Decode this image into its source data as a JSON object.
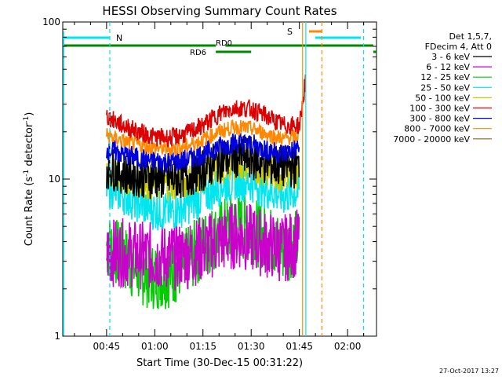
{
  "chart_data": {
    "type": "line",
    "title": "HESSI Observing Summary Count Rates",
    "xlabel": "Start Time (30-Dec-15 00:31:22)",
    "ylabel": "Count Rate (s",
    "ylabel_sup": "-1",
    "ylabel_mid": " detector",
    "ylabel_sup2": "-1",
    "ylabel_end": ")",
    "y_scale": "log",
    "ylim": [
      1,
      100
    ],
    "xlim": [
      "00:31:22",
      "02:09:00"
    ],
    "y_ticks": [
      {
        "value": 1,
        "label": "1"
      },
      {
        "value": 10,
        "label": "10"
      },
      {
        "value": 100,
        "label": "100"
      }
    ],
    "x_ticks": [
      {
        "value": "00:45",
        "label": "00:45"
      },
      {
        "value": "01:00",
        "label": "01:00"
      },
      {
        "value": "01:15",
        "label": "01:15"
      },
      {
        "value": "01:30",
        "label": "01:30"
      },
      {
        "value": "01:45",
        "label": "01:45"
      },
      {
        "value": "02:00",
        "label": "02:00"
      }
    ],
    "legend_header": [
      "Det 1,5,7,",
      "FDecim 4, Att 0"
    ],
    "legend_placement": "right",
    "series": [
      {
        "name": "3 - 6 keV",
        "color": "#000000",
        "x": [
          "00:45",
          "00:50",
          "00:55",
          "01:00",
          "01:05",
          "01:10",
          "01:15",
          "01:20",
          "01:25",
          "01:30",
          "01:35",
          "01:40",
          "01:45"
        ],
        "values": [
          12,
          11,
          10.5,
          10.2,
          10,
          10.5,
          11.5,
          13,
          14,
          13.5,
          12.5,
          12,
          12
        ]
      },
      {
        "name": "6 - 12 keV",
        "color": "#cc00cc",
        "x": [
          "00:45",
          "00:50",
          "00:55",
          "01:00",
          "01:05",
          "01:10",
          "01:15",
          "01:20",
          "01:25",
          "01:30",
          "01:35",
          "01:40",
          "01:45"
        ],
        "values": [
          3.4,
          3.4,
          3.3,
          3.2,
          3.2,
          3.3,
          3.6,
          4,
          4.4,
          4.2,
          3.8,
          3.6,
          4
        ]
      },
      {
        "name": "12 - 25 keV",
        "color": "#00cc00",
        "x": [
          "00:45",
          "00:50",
          "00:55",
          "01:00",
          "01:05",
          "01:10",
          "01:15",
          "01:20",
          "01:25",
          "01:30",
          "01:35",
          "01:40",
          "01:45"
        ],
        "values": [
          3.8,
          3.2,
          2.6,
          2.4,
          2.5,
          3,
          3.8,
          4.5,
          5,
          4.8,
          4.2,
          3.6,
          4
        ]
      },
      {
        "name": "25 - 50 keV",
        "color": "#00e5ee",
        "x": [
          "00:45",
          "00:50",
          "00:55",
          "01:00",
          "01:05",
          "01:10",
          "01:15",
          "01:20",
          "01:25",
          "01:30",
          "01:35",
          "01:40",
          "01:45"
        ],
        "values": [
          9,
          8,
          7,
          6.3,
          6.2,
          6.8,
          7.8,
          9,
          9.8,
          9.5,
          8.6,
          7.8,
          8.5
        ]
      },
      {
        "name": "50 - 100 keV",
        "color": "#cccc00",
        "x": [
          "00:45",
          "00:50",
          "00:55",
          "01:00",
          "01:05",
          "01:10",
          "01:15",
          "01:20",
          "01:25",
          "01:30",
          "01:35",
          "01:40",
          "01:45"
        ],
        "values": [
          11,
          10.3,
          9.7,
          9.3,
          9.3,
          9.7,
          10.6,
          11.8,
          12.6,
          12.2,
          11.3,
          10.6,
          11
        ]
      },
      {
        "name": "100 - 300 keV",
        "color": "#dd0000",
        "x": [
          "00:45",
          "00:50",
          "00:55",
          "01:00",
          "01:05",
          "01:10",
          "01:15",
          "01:20",
          "01:25",
          "01:30",
          "01:35",
          "01:40",
          "01:45",
          "01:46",
          "01:47"
        ],
        "values": [
          25,
          22,
          20,
          18.5,
          18.3,
          19.5,
          22,
          26,
          28.5,
          28,
          25,
          22,
          22,
          30,
          45
        ]
      },
      {
        "name": "300 - 800 keV",
        "color": "#0000dd",
        "x": [
          "00:45",
          "00:50",
          "00:55",
          "01:00",
          "01:05",
          "01:10",
          "01:15",
          "01:20",
          "01:25",
          "01:30",
          "01:35",
          "01:40",
          "01:45"
        ],
        "values": [
          15.5,
          14.5,
          13.5,
          13,
          12.8,
          13.3,
          14.5,
          16,
          17,
          16.6,
          15.3,
          14.5,
          16
        ]
      },
      {
        "name": "800 - 7000 keV",
        "color": "#ff8800",
        "x": [
          "00:45",
          "00:50",
          "00:55",
          "01:00",
          "01:05",
          "01:10",
          "01:15",
          "01:20",
          "01:25",
          "01:30",
          "01:35",
          "01:40",
          "01:45"
        ],
        "values": [
          19,
          17.5,
          16.5,
          15.8,
          15.6,
          16.2,
          17.8,
          20,
          21.5,
          21,
          19.3,
          18,
          19
        ]
      },
      {
        "name": "7000 - 20000 keV",
        "color": "#8b6914",
        "x": [],
        "values": []
      }
    ],
    "annotations": {
      "top_bars": [
        {
          "label": "N",
          "color": "#00e5ee"
        },
        {
          "label": "RD0",
          "color": "#008800"
        },
        {
          "label": "RD6",
          "color": "#008800"
        },
        {
          "label": "S",
          "color": "#ff8800"
        }
      ],
      "vertical_markers": [
        "00:46 dashed",
        "01:46 solid",
        "01:47 solid",
        "01:50 dashed",
        "02:04 dashed"
      ]
    },
    "grid": false
  },
  "footer": {
    "date_stamp": "27-Oct-2017 13:27"
  }
}
